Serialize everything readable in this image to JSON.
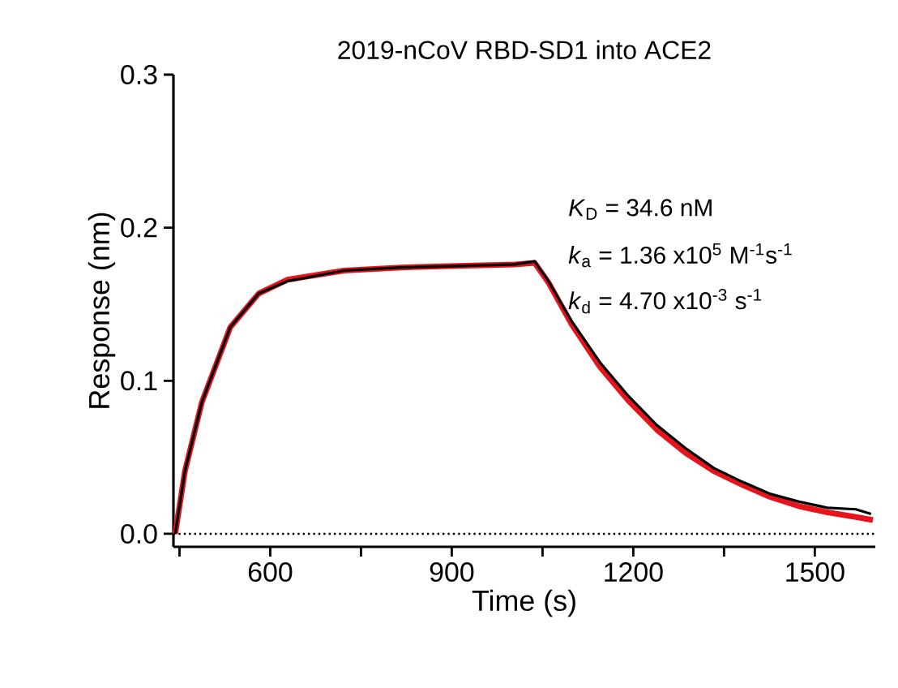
{
  "chart_data": {
    "type": "line",
    "title": "2019-nCoV RBD-SD1 into ACE2",
    "xlabel": "Time (s)",
    "ylabel": "Response (nm)",
    "annotations": [
      "*K*$_{D}$ = 34.6 nM",
      "*k*$_{a}$ = 1.36 x10$^{5}$ M$^{-1}$s$^{-1}$",
      "*k*$_{d}$ = 4.70 x10$^{-3}$ s$^{-1}$"
    ],
    "xlim": [
      440,
      1600
    ],
    "ylim": [
      -0.0085,
      0.3
    ],
    "xticks": [
      {
        "value": 450,
        "label": null
      },
      600,
      {
        "value": 750,
        "label": null
      },
      900,
      {
        "value": 1050,
        "label": null
      },
      1200,
      {
        "value": 1350,
        "label": null
      },
      1500
    ],
    "yticks": [
      {
        "value": 0,
        "label": "0.0"
      },
      0.1,
      0.2,
      0.3
    ],
    "marker": "none",
    "line_style": "solid",
    "ref_lines": [
      {
        "axis": "y",
        "value": 0,
        "line_style": "dotted",
        "color": "#000000"
      }
    ],
    "series": [
      {
        "color": "#e8141c",
        "x": [
          443,
          459,
          487,
          534,
          581,
          628,
          722,
          816,
          910,
          1004,
          1037,
          1060,
          1098,
          1145,
          1192,
          1239,
          1286,
          1333,
          1380,
          1427,
          1474,
          1521,
          1568,
          1596
        ],
        "values": [
          0,
          0.041,
          0.086,
          0.135,
          0.157,
          0.166,
          0.172,
          0.174,
          0.175,
          0.176,
          0.177,
          0.164,
          0.137,
          0.109,
          0.087,
          0.068,
          0.053,
          0.041,
          0.032,
          0.024,
          0.018,
          0.014,
          0.011,
          0.009
        ]
      },
      {
        "color": "#000000",
        "x": [
          443,
          459,
          487,
          534,
          581,
          628,
          722,
          816,
          910,
          1004,
          1037,
          1060,
          1098,
          1145,
          1192,
          1239,
          1286,
          1333,
          1380,
          1427,
          1474,
          1521,
          1568,
          1593
        ],
        "values": [
          0,
          0.041,
          0.086,
          0.135,
          0.157,
          0.165,
          0.172,
          0.174,
          0.175,
          0.176,
          0.178,
          0.165,
          0.139,
          0.112,
          0.09,
          0.071,
          0.056,
          0.043,
          0.034,
          0.026,
          0.021,
          0.017,
          0.016,
          0.013
        ]
      }
    ]
  }
}
